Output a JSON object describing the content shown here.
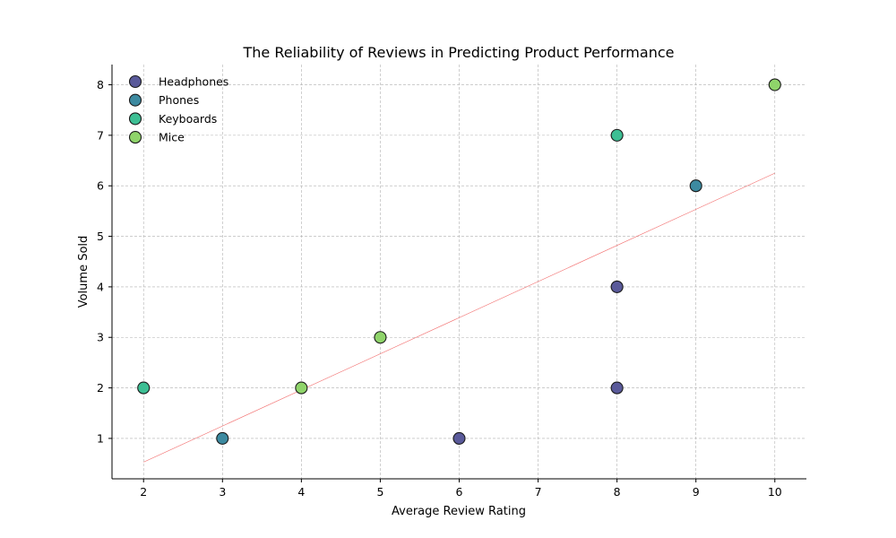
{
  "chart_data": {
    "type": "scatter",
    "title": "The Reliability of Reviews in Predicting Product Performance",
    "xlabel": "Average Review Rating",
    "ylabel": "Volume Sold",
    "xlim": [
      1.6,
      10.4
    ],
    "ylim": [
      0.2,
      8.4
    ],
    "x_ticks": [
      2,
      3,
      4,
      5,
      6,
      7,
      8,
      9,
      10
    ],
    "y_ticks": [
      1,
      2,
      3,
      4,
      5,
      6,
      7,
      8
    ],
    "grid": true,
    "legend_position": "top-left",
    "series": [
      {
        "name": "Headphones",
        "color": "#5a5a9a",
        "points": [
          [
            8,
            4
          ],
          [
            6,
            1
          ],
          [
            8,
            2
          ]
        ]
      },
      {
        "name": "Phones",
        "color": "#3d8aa0",
        "points": [
          [
            9,
            6
          ],
          [
            3,
            1
          ]
        ]
      },
      {
        "name": "Keyboards",
        "color": "#3dbf94",
        "points": [
          [
            8,
            7
          ],
          [
            2,
            2
          ]
        ]
      },
      {
        "name": "Mice",
        "color": "#8fd46a",
        "points": [
          [
            10,
            8
          ],
          [
            5,
            3
          ],
          [
            4,
            2
          ]
        ]
      }
    ],
    "trend_line": {
      "color": "#f26b6b",
      "x": [
        2,
        10
      ],
      "y": [
        0.53,
        6.25
      ]
    }
  }
}
